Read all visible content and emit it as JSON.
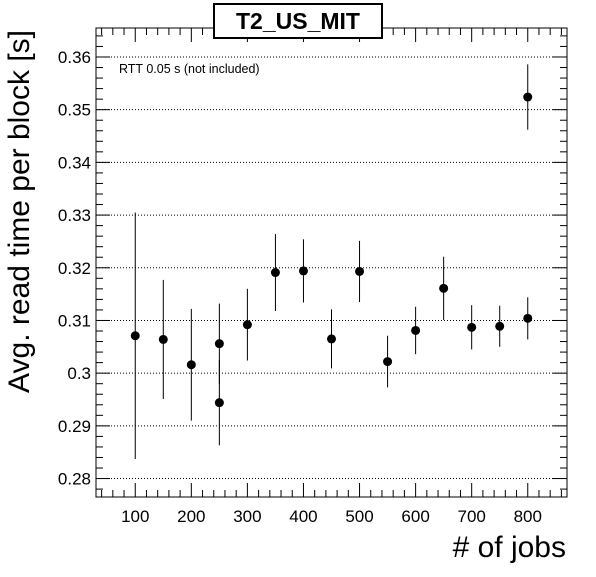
{
  "chart_data": {
    "type": "scatter",
    "title": "T2_US_MIT",
    "xlabel": "# of jobs",
    "ylabel": "Avg. read time per block [s]",
    "annotation": "RTT 0.05 s (not included)",
    "xlim": [
      30,
      870
    ],
    "ylim": [
      0.2765,
      0.3655
    ],
    "x_ticks": [
      100,
      200,
      300,
      400,
      500,
      600,
      700,
      800
    ],
    "x_tick_labels": [
      "100",
      "200",
      "300",
      "400",
      "500",
      "600",
      "700",
      "800"
    ],
    "y_ticks": [
      0.28,
      0.29,
      0.3,
      0.31,
      0.32,
      0.33,
      0.34,
      0.35,
      0.36
    ],
    "y_tick_labels": [
      "0.28",
      "0.29",
      "0.3",
      "0.31",
      "0.32",
      "0.33",
      "0.34",
      "0.35",
      "0.36"
    ],
    "grid": "horizontal-dotted",
    "points": [
      {
        "x": 100,
        "y": 0.3071,
        "err": 0.0234
      },
      {
        "x": 150,
        "y": 0.3064,
        "err": 0.0113
      },
      {
        "x": 200,
        "y": 0.3016,
        "err": 0.0106
      },
      {
        "x": 250,
        "y": 0.3056,
        "err": 0.0076
      },
      {
        "x": 250,
        "y": 0.2944,
        "err": 0.0081
      },
      {
        "x": 300,
        "y": 0.3092,
        "err": 0.0068
      },
      {
        "x": 350,
        "y": 0.3191,
        "err": 0.0073
      },
      {
        "x": 400,
        "y": 0.3194,
        "err": 0.006
      },
      {
        "x": 450,
        "y": 0.3065,
        "err": 0.0056
      },
      {
        "x": 500,
        "y": 0.3193,
        "err": 0.0058
      },
      {
        "x": 550,
        "y": 0.3022,
        "err": 0.0049
      },
      {
        "x": 600,
        "y": 0.3081,
        "err": 0.0045
      },
      {
        "x": 650,
        "y": 0.3161,
        "err": 0.006
      },
      {
        "x": 700,
        "y": 0.3087,
        "err": 0.0042
      },
      {
        "x": 750,
        "y": 0.3089,
        "err": 0.0039
      },
      {
        "x": 800,
        "y": 0.3104,
        "err": 0.004
      },
      {
        "x": 800,
        "y": 0.3524,
        "err": 0.0062
      }
    ]
  }
}
